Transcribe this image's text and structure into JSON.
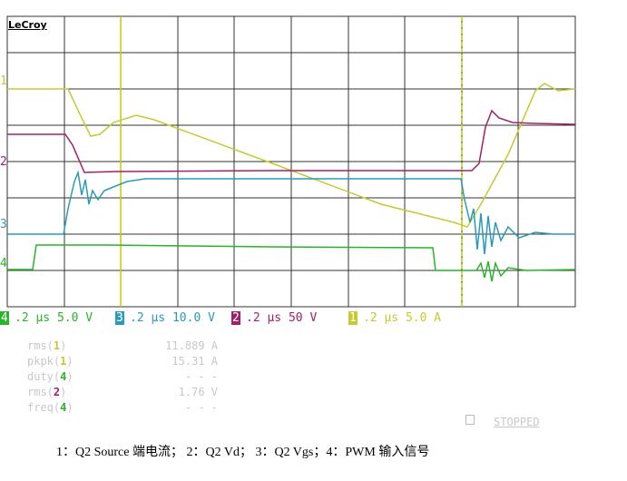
{
  "header": {
    "brand": "LeCroy"
  },
  "channel_markers": [
    "1",
    "2",
    "3",
    "4"
  ],
  "channel_settings": [
    {
      "id": "4",
      "text": ".2 µs 5.0 V"
    },
    {
      "id": "3",
      "text": ".2 µs 10.0 V"
    },
    {
      "id": "2",
      "text": ".2 µs 50 V"
    },
    {
      "id": "1",
      "text": ".2 µs 5.0 A"
    }
  ],
  "measurements": [
    {
      "name": "rms(",
      "channel": "1",
      "close": ")",
      "value": "11.889 A"
    },
    {
      "name": "pkpk(",
      "channel": "1",
      "close": ")",
      "value": "15.31 A"
    },
    {
      "name": "duty(",
      "channel": "4",
      "close": ")",
      "value": "- - -"
    },
    {
      "name": "rms(",
      "channel": "2",
      "close": ")",
      "value": "1.76 V"
    },
    {
      "name": "freq(",
      "channel": "4",
      "close": ")",
      "value": "- - -"
    }
  ],
  "status": "STOPPED",
  "caption": "1：Q2 Source 端电流； 2：Q2 Vd； 3：Q2 Vgs；4：PWM 输入信号"
}
